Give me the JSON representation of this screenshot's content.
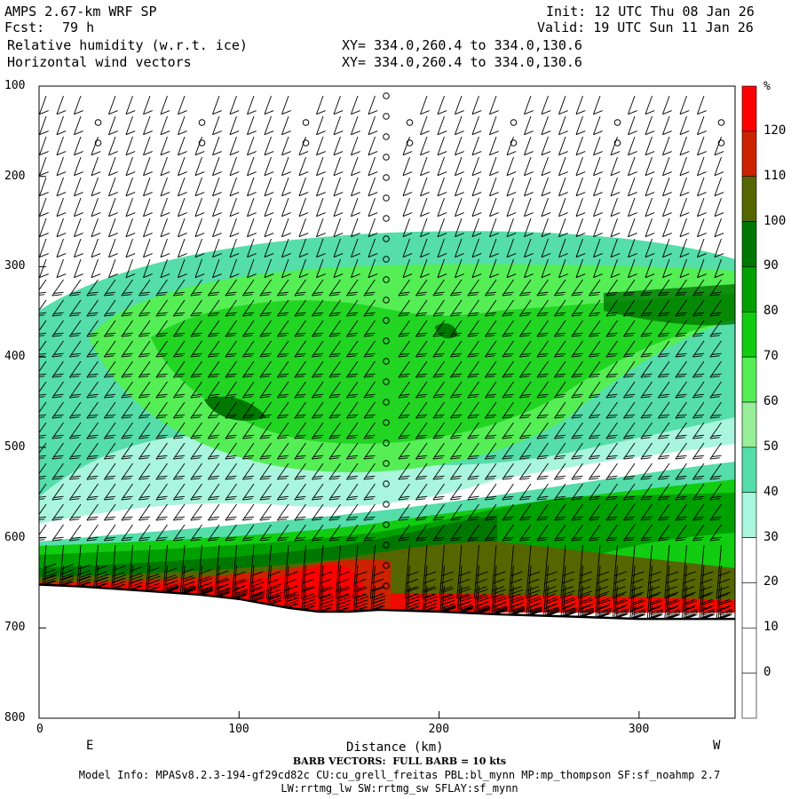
{
  "header": {
    "model": "AMPS 2.67-km WRF SP",
    "fcst_label": "Fcst:",
    "fcst_value": "79 h",
    "field1": "Relative humidity (w.r.t. ice)",
    "field2": "Horizontal wind vectors",
    "init": "Init: 12 UTC Thu 08 Jan 26",
    "valid": "Valid: 19 UTC Sun 11 Jan 26",
    "xy1": "XY= 334.0,260.4 to 334.0,130.6",
    "xy2": "XY= 334.0,260.4 to 334.0,130.6"
  },
  "footer": {
    "barb_note": "BARB VECTORS:  FULL BARB = 10 kts",
    "model_info": "Model Info: MPASv8.2.3-194-gf29cd82c CU:cu_grell_freitas PBL:bl_mynn MP:mp_thompson SF:sf_noahmp 2.7",
    "model_info2": "LW:rrtmg_lw SW:rrtmg_sw SFLAY:sf_mynn"
  },
  "chart_data": {
    "type": "heatmap",
    "xlabel": "Distance (km)",
    "x_ticks": [
      "0",
      "100",
      "200",
      "300"
    ],
    "x_tick_values": [
      0,
      100,
      200,
      300
    ],
    "xlim": [
      0,
      348
    ],
    "end_labels": [
      "E",
      "W"
    ],
    "y_ticks": [
      "100",
      "200",
      "300",
      "400",
      "500",
      "600",
      "700",
      "800"
    ],
    "y_tick_values": [
      100,
      200,
      300,
      400,
      500,
      600,
      700,
      800
    ],
    "ylim": [
      800,
      100
    ],
    "colorbar": {
      "unit": "%",
      "labels": [
        "120",
        "110",
        "100",
        "90",
        "80",
        "70",
        "60",
        "50",
        "40",
        "30",
        "20",
        "10",
        "0"
      ],
      "colors": [
        "#ff0000",
        "#cc2200",
        "#556600",
        "#007700",
        "#00a000",
        "#11cc11",
        "#55ee55",
        "#99ee99",
        "#55ddaa",
        "#aaf5dd",
        "#ffffff",
        "#ffffff",
        "#ffffff",
        "#ffffff"
      ]
    },
    "terrain_pressure": [
      [
        0,
        652
      ],
      [
        20,
        654
      ],
      [
        40,
        657
      ],
      [
        60,
        660
      ],
      [
        80,
        663
      ],
      [
        100,
        668
      ],
      [
        110,
        672
      ],
      [
        125,
        678
      ],
      [
        140,
        682
      ],
      [
        155,
        682
      ],
      [
        170,
        680
      ],
      [
        200,
        682
      ],
      [
        230,
        685
      ],
      [
        260,
        687
      ],
      [
        300,
        690
      ],
      [
        348,
        690
      ]
    ]
  }
}
